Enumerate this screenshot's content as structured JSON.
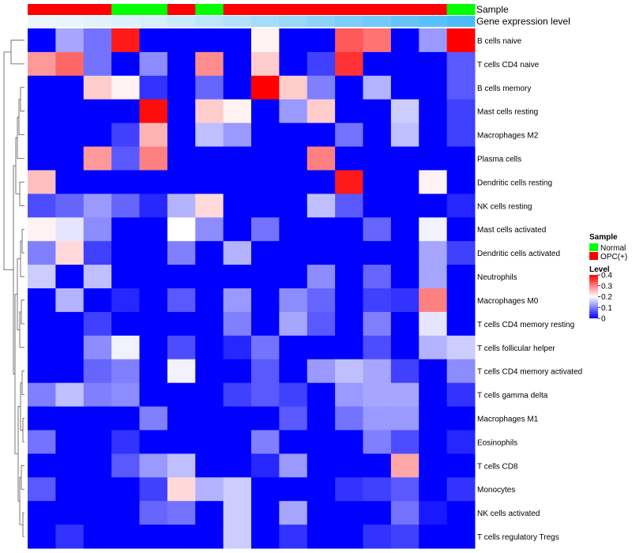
{
  "chart_data": {
    "type": "heatmap",
    "title": "",
    "annotation_rows": {
      "sample_label": "Sample",
      "level_label": "Gene expression level"
    },
    "sample_groups": [
      "OPC(+)",
      "OPC(+)",
      "OPC(+)",
      "Normal",
      "Normal",
      "OPC(+)",
      "Normal",
      "OPC(+)",
      "OPC(+)",
      "OPC(+)",
      "OPC(+)",
      "OPC(+)",
      "OPC(+)",
      "OPC(+)",
      "OPC(+)",
      "Normal"
    ],
    "sample_levels": [
      0.02,
      0.03,
      0.05,
      0.08,
      0.1,
      0.15,
      0.2,
      0.25,
      0.3,
      0.35,
      0.4,
      0.45,
      0.5,
      0.55,
      0.6,
      0.65
    ],
    "rows": [
      "B cells naive",
      "T cells CD4 naive",
      "B cells memory",
      "Mast cells resting",
      "Macrophages M2",
      "Plasma cells",
      "Dendritic cells resting",
      "NK cells resting",
      "Mast cells activated",
      "Dendritic cells activated",
      "Neutrophils",
      "Macrophages M0",
      "T cells CD4 memory resting",
      "T cells follicular helper",
      "T cells CD4 memory activated",
      "T cells gamma delta",
      "Macrophages M1",
      "Eosinophils",
      "T cells CD8",
      "Monocytes",
      "NK cells activated",
      "T cells regulatory  Tregs"
    ],
    "values": [
      [
        0.0,
        0.13,
        0.09,
        0.38,
        0.0,
        0.0,
        0.0,
        0.0,
        0.21,
        0.0,
        0.0,
        0.33,
        0.31,
        0.0,
        0.12,
        0.4
      ],
      [
        0.28,
        0.32,
        0.09,
        0.0,
        0.11,
        0.0,
        0.29,
        0.0,
        0.24,
        0.0,
        0.05,
        0.36,
        0.0,
        0.0,
        0.0,
        0.07
      ],
      [
        0.0,
        0.0,
        0.24,
        0.21,
        0.04,
        0.0,
        0.08,
        0.0,
        0.4,
        0.24,
        0.1,
        0.0,
        0.14,
        0.0,
        0.0,
        0.07
      ],
      [
        0.0,
        0.0,
        0.0,
        0.0,
        0.39,
        0.0,
        0.24,
        0.21,
        0.0,
        0.12,
        0.24,
        0.0,
        0.0,
        0.16,
        0.0,
        0.05
      ],
      [
        0.0,
        0.0,
        0.0,
        0.05,
        0.26,
        0.0,
        0.15,
        0.12,
        0.0,
        0.0,
        0.0,
        0.09,
        0.0,
        0.15,
        0.0,
        0.05
      ],
      [
        0.0,
        0.0,
        0.28,
        0.07,
        0.3,
        0.0,
        0.0,
        0.0,
        0.0,
        0.0,
        0.3,
        0.0,
        0.0,
        0.0,
        0.0,
        0.0
      ],
      [
        0.25,
        0.0,
        0.0,
        0.0,
        0.0,
        0.0,
        0.0,
        0.0,
        0.0,
        0.0,
        0.0,
        0.38,
        0.0,
        0.0,
        0.21,
        0.0
      ],
      [
        0.06,
        0.08,
        0.12,
        0.08,
        0.03,
        0.14,
        0.23,
        0.0,
        0.0,
        0.0,
        0.15,
        0.07,
        0.0,
        0.0,
        0.0,
        0.03
      ],
      [
        0.21,
        0.18,
        0.11,
        0.0,
        0.0,
        0.2,
        0.11,
        0.0,
        0.09,
        0.0,
        0.0,
        0.0,
        0.08,
        0.0,
        0.19,
        0.0
      ],
      [
        0.1,
        0.23,
        0.05,
        0.0,
        0.0,
        0.1,
        0.0,
        0.14,
        0.0,
        0.0,
        0.0,
        0.0,
        0.0,
        0.0,
        0.13,
        0.05
      ],
      [
        0.16,
        0.0,
        0.15,
        0.0,
        0.0,
        0.0,
        0.0,
        0.0,
        0.0,
        0.0,
        0.11,
        0.0,
        0.08,
        0.0,
        0.13,
        0.0
      ],
      [
        0.0,
        0.14,
        0.0,
        0.03,
        0.0,
        0.07,
        0.0,
        0.12,
        0.0,
        0.11,
        0.08,
        0.0,
        0.05,
        0.04,
        0.3,
        0.0
      ],
      [
        0.0,
        0.0,
        0.05,
        0.0,
        0.0,
        0.0,
        0.0,
        0.1,
        0.0,
        0.13,
        0.07,
        0.0,
        0.1,
        0.0,
        0.18,
        0.0
      ],
      [
        0.0,
        0.0,
        0.11,
        0.19,
        0.0,
        0.06,
        0.0,
        0.03,
        0.09,
        0.0,
        0.0,
        0.0,
        0.06,
        0.0,
        0.14,
        0.16
      ],
      [
        0.0,
        0.0,
        0.08,
        0.1,
        0.0,
        0.19,
        0.0,
        0.0,
        0.07,
        0.0,
        0.12,
        0.15,
        0.13,
        0.05,
        0.0,
        0.11
      ],
      [
        0.1,
        0.15,
        0.1,
        0.11,
        0.0,
        0.0,
        0.0,
        0.05,
        0.07,
        0.05,
        0.0,
        0.12,
        0.13,
        0.13,
        0.0,
        0.04
      ],
      [
        0.0,
        0.0,
        0.0,
        0.0,
        0.1,
        0.0,
        0.0,
        0.0,
        0.0,
        0.07,
        0.0,
        0.09,
        0.12,
        0.12,
        0.0,
        0.0
      ],
      [
        0.09,
        0.0,
        0.0,
        0.04,
        0.0,
        0.0,
        0.0,
        0.0,
        0.1,
        0.0,
        0.0,
        0.0,
        0.1,
        0.06,
        0.0,
        0.03
      ],
      [
        0.0,
        0.0,
        0.0,
        0.07,
        0.12,
        0.15,
        0.0,
        0.0,
        0.03,
        0.12,
        0.0,
        0.0,
        0.0,
        0.27,
        0.0,
        0.0
      ],
      [
        0.07,
        0.0,
        0.0,
        0.0,
        0.05,
        0.23,
        0.14,
        0.16,
        0.0,
        0.0,
        0.0,
        0.04,
        0.05,
        0.07,
        0.0,
        0.04
      ],
      [
        0.0,
        0.0,
        0.0,
        0.0,
        0.08,
        0.09,
        0.0,
        0.16,
        0.0,
        0.13,
        0.0,
        0.0,
        0.0,
        0.09,
        0.02,
        0.0
      ],
      [
        0.0,
        0.04,
        0.0,
        0.0,
        0.0,
        0.0,
        0.0,
        0.16,
        0.0,
        0.04,
        0.0,
        0.0,
        0.04,
        0.05,
        0.0,
        0.0
      ]
    ],
    "color_scale": {
      "min": 0,
      "mid": 0.2,
      "max": 0.4,
      "low": "#0000ff",
      "middle": "#ffffff",
      "high": "#ff0000"
    },
    "sample_colors": {
      "Normal": "#00ff00",
      "OPC(+)": "#ff0000"
    },
    "level_colors": {
      "low": "#f0f8ff",
      "high": "#4cbcf8"
    },
    "legend": {
      "sample_title": "Sample",
      "sample_entries": [
        "Normal",
        "OPC(+)"
      ],
      "level_title": "Level",
      "level_ticks": [
        "0.4",
        "0.3",
        "0.2",
        "0.1",
        "0"
      ]
    },
    "dendrogram": "rows",
    "legend_position": "right"
  }
}
